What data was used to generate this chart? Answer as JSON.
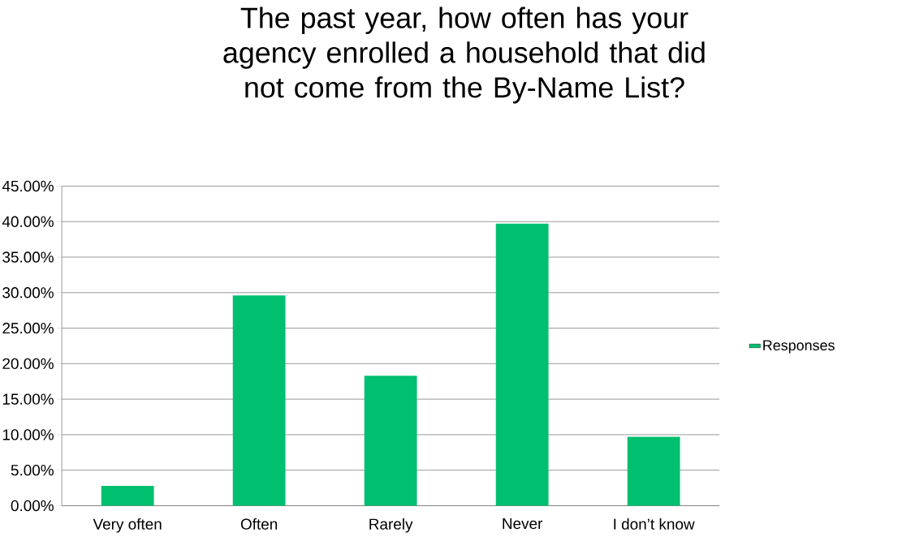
{
  "chart_data": {
    "type": "bar",
    "title": "The past year, how often has your agency enrolled a household that did not come from the By-Name List?",
    "categories": [
      "Very often",
      "Often",
      "Rarely",
      "Never",
      "I don’t know"
    ],
    "series": [
      {
        "name": "Responses",
        "color": "#00bf6f",
        "values": [
          2.8,
          29.6,
          18.3,
          39.7,
          9.7
        ]
      }
    ],
    "ylim": [
      0,
      45
    ],
    "yticks": [
      {
        "value": 0,
        "label": "0.00%"
      },
      {
        "value": 5,
        "label": "5.00%"
      },
      {
        "value": 10,
        "label": "10.00%"
      },
      {
        "value": 15,
        "label": "15.00%"
      },
      {
        "value": 20,
        "label": "20.00%"
      },
      {
        "value": 25,
        "label": "25.00%"
      },
      {
        "value": 30,
        "label": "30.00%"
      },
      {
        "value": 35,
        "label": "35.00%"
      },
      {
        "value": 40,
        "label": "40.00%"
      },
      {
        "value": 45,
        "label": "45.00%"
      }
    ],
    "grid": "y",
    "legend": "right"
  }
}
